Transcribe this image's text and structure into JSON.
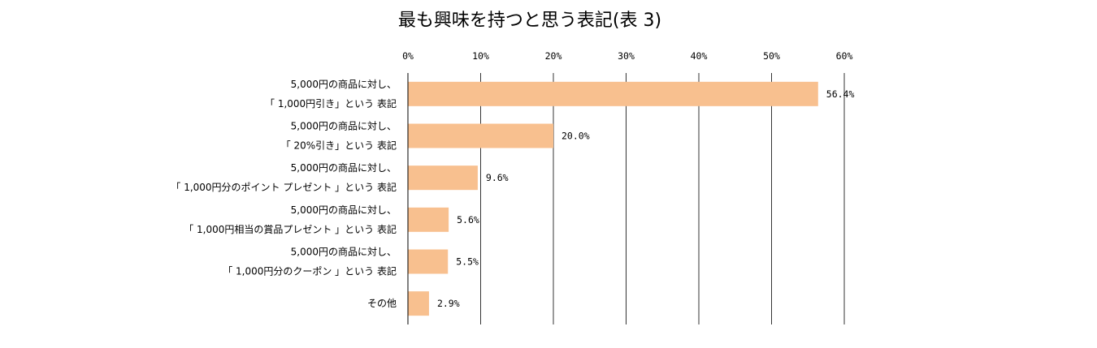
{
  "chart_data": {
    "type": "bar",
    "orientation": "horizontal",
    "title": "最も興味を持つと思う表記(表 3)",
    "xlim": [
      0,
      60
    ],
    "ticks": [
      0,
      10,
      20,
      30,
      40,
      50,
      60
    ],
    "tick_labels": [
      "0%",
      "10%",
      "20%",
      "30%",
      "40%",
      "50%",
      "60%"
    ],
    "axis_position": "top",
    "grid": true,
    "bar_color": "#F8C08F",
    "categories": [
      [
        "5,000円の商品に対し、",
        "「 1,000円引き」という 表記"
      ],
      [
        "5,000円の商品に対し、",
        "「 20%引き」という 表記"
      ],
      [
        "5,000円の商品に対し、",
        "「 1,000円分のポイント プレゼント 」という 表記"
      ],
      [
        "5,000円の商品に対し、",
        "「 1,000円相当の賞品プレゼント 」という 表記"
      ],
      [
        "5,000円の商品に対し、",
        "「 1,000円分のクーポン 」という 表記"
      ],
      [
        "その他"
      ]
    ],
    "values": [
      56.4,
      20.0,
      9.6,
      5.6,
      5.5,
      2.9
    ],
    "value_labels": [
      "56.4%",
      "20.0%",
      "9.6%",
      "5.6%",
      "5.5%",
      "2.9%"
    ]
  }
}
